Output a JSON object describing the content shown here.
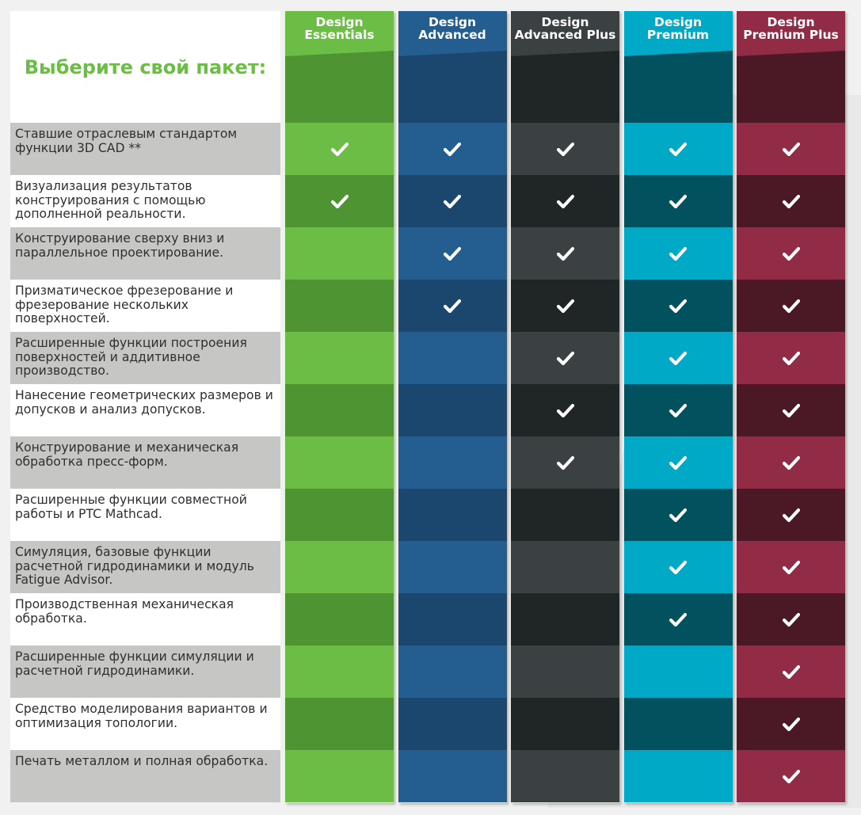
{
  "title": "Выберите свой пакет:",
  "plans": [
    {
      "name_line1": "Design",
      "name_line2": "Essentials",
      "head_light": "#6cbd45",
      "head_dark": "#4f9432",
      "cell_light": "#6cbd45",
      "cell_dark": "#4f9432"
    },
    {
      "name_line1": "Design",
      "name_line2": "Advanced",
      "head_light": "#245d8f",
      "head_dark": "#1b476e",
      "cell_light": "#245d8f",
      "cell_dark": "#1b476e"
    },
    {
      "name_line1": "Design",
      "name_line2": "Advanced Plus",
      "head_light": "#3b4142",
      "head_dark": "#202526",
      "cell_light": "#3b4142",
      "cell_dark": "#202526"
    },
    {
      "name_line1": "Design",
      "name_line2": "Premium",
      "head_light": "#00a9c6",
      "head_dark": "#02515e",
      "cell_light": "#00a9c6",
      "cell_dark": "#02515e"
    },
    {
      "name_line1": "Design",
      "name_line2": "Premium Plus",
      "head_light": "#922c46",
      "head_dark": "#4b1925",
      "cell_light": "#922c46",
      "cell_dark": "#4b1925"
    }
  ],
  "features": [
    {
      "label": "Ставшие отраслевым стандартом функции 3D CAD **",
      "checks": [
        true,
        true,
        true,
        true,
        true
      ]
    },
    {
      "label": "Визуализация результатов конструирования с помощью дополненной реальности.",
      "checks": [
        true,
        true,
        true,
        true,
        true
      ]
    },
    {
      "label": "Конструирование сверху вниз и параллельное проектирование.",
      "checks": [
        false,
        true,
        true,
        true,
        true
      ]
    },
    {
      "label": "Призматическое фрезерование и фрезерование нескольких поверхностей.",
      "checks": [
        false,
        true,
        true,
        true,
        true
      ]
    },
    {
      "label": "Расширенные функции построения поверхностей и аддитивное производство.",
      "checks": [
        false,
        false,
        true,
        true,
        true
      ]
    },
    {
      "label": "Нанесение геометрических размеров и допусков и анализ допусков.",
      "checks": [
        false,
        false,
        true,
        true,
        true
      ]
    },
    {
      "label": "Конструирование и механическая обработка пресс-форм.",
      "checks": [
        false,
        false,
        true,
        true,
        true
      ]
    },
    {
      "label": "Расширенные функции совместной работы и PTC Mathcad.",
      "checks": [
        false,
        false,
        false,
        true,
        true
      ]
    },
    {
      "label": "Симуляция, базовые функции расчетной гидродинамики и модуль Fatigue Advisor.",
      "checks": [
        false,
        false,
        false,
        true,
        true
      ]
    },
    {
      "label": "Производственная механическая обработка.",
      "checks": [
        false,
        false,
        false,
        true,
        true
      ]
    },
    {
      "label": "Расширенные функции симуляции и расчетной гидродинамики.",
      "checks": [
        false,
        false,
        false,
        false,
        true
      ]
    },
    {
      "label": "Средство моделирования вариантов и оптимизация топологии.",
      "checks": [
        false,
        false,
        false,
        false,
        true
      ]
    },
    {
      "label": "Печать металлом и полная обработка.",
      "checks": [
        false,
        false,
        false,
        false,
        true
      ]
    }
  ],
  "icons": {
    "check": "check-icon"
  }
}
